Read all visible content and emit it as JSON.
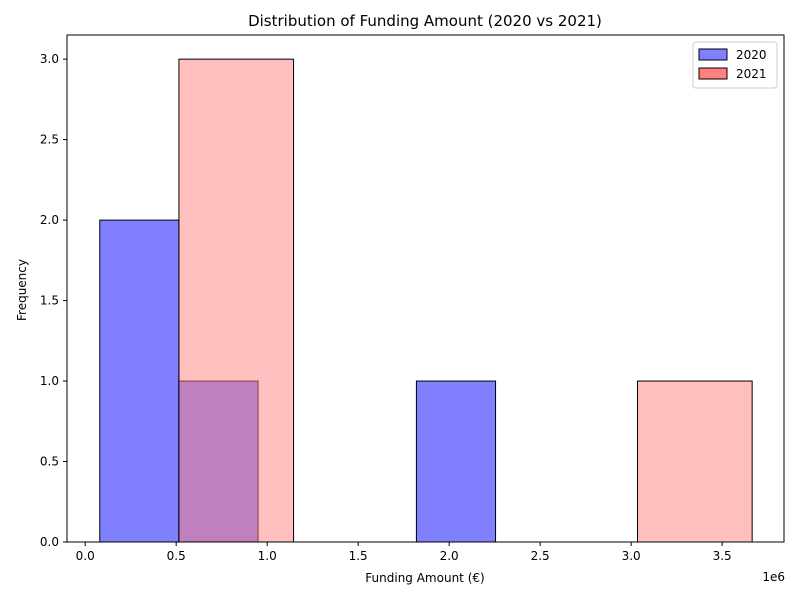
{
  "chart_data": {
    "type": "bar",
    "title": "Distribution of Funding Amount (2020 vs 2021)",
    "xlabel": "Funding Amount (€)",
    "ylabel": "Frequency",
    "x_offset_label": "1e6",
    "xlim": [
      -0.1,
      3.84
    ],
    "ylim": [
      0,
      3.15
    ],
    "x_ticks": [
      {
        "value": 0.0,
        "label": "0.0"
      },
      {
        "value": 0.5,
        "label": "0.5"
      },
      {
        "value": 1.0,
        "label": "1.0"
      },
      {
        "value": 1.5,
        "label": "1.5"
      },
      {
        "value": 2.0,
        "label": "2.0"
      },
      {
        "value": 2.5,
        "label": "2.5"
      },
      {
        "value": 3.0,
        "label": "3.0"
      },
      {
        "value": 3.5,
        "label": "3.5"
      }
    ],
    "y_ticks": [
      {
        "value": 0.0,
        "label": "0.0"
      },
      {
        "value": 0.5,
        "label": "0.5"
      },
      {
        "value": 1.0,
        "label": "1.0"
      },
      {
        "value": 1.5,
        "label": "1.5"
      },
      {
        "value": 2.0,
        "label": "2.0"
      },
      {
        "value": 2.5,
        "label": "2.5"
      },
      {
        "value": 3.0,
        "label": "3.0"
      }
    ],
    "grid": false,
    "legend_position": "top-right",
    "series": [
      {
        "name": "2020",
        "color": "#8080ff",
        "bins": [
          {
            "x0": 0.08,
            "x1": 0.515,
            "count": 2
          },
          {
            "x0": 0.515,
            "x1": 0.95,
            "count": 1
          },
          {
            "x0": 0.95,
            "x1": 1.385,
            "count": 0
          },
          {
            "x0": 1.385,
            "x1": 1.82,
            "count": 0
          },
          {
            "x0": 1.82,
            "x1": 2.255,
            "count": 1
          }
        ]
      },
      {
        "name": "2021",
        "color": "#ff8080",
        "bins": [
          {
            "x0": 0.515,
            "x1": 1.145,
            "count": 3
          },
          {
            "x0": 1.145,
            "x1": 1.775,
            "count": 0
          },
          {
            "x0": 1.775,
            "x1": 2.405,
            "count": 0
          },
          {
            "x0": 2.405,
            "x1": 3.035,
            "count": 0
          },
          {
            "x0": 3.035,
            "x1": 3.665,
            "count": 1
          }
        ]
      }
    ]
  }
}
